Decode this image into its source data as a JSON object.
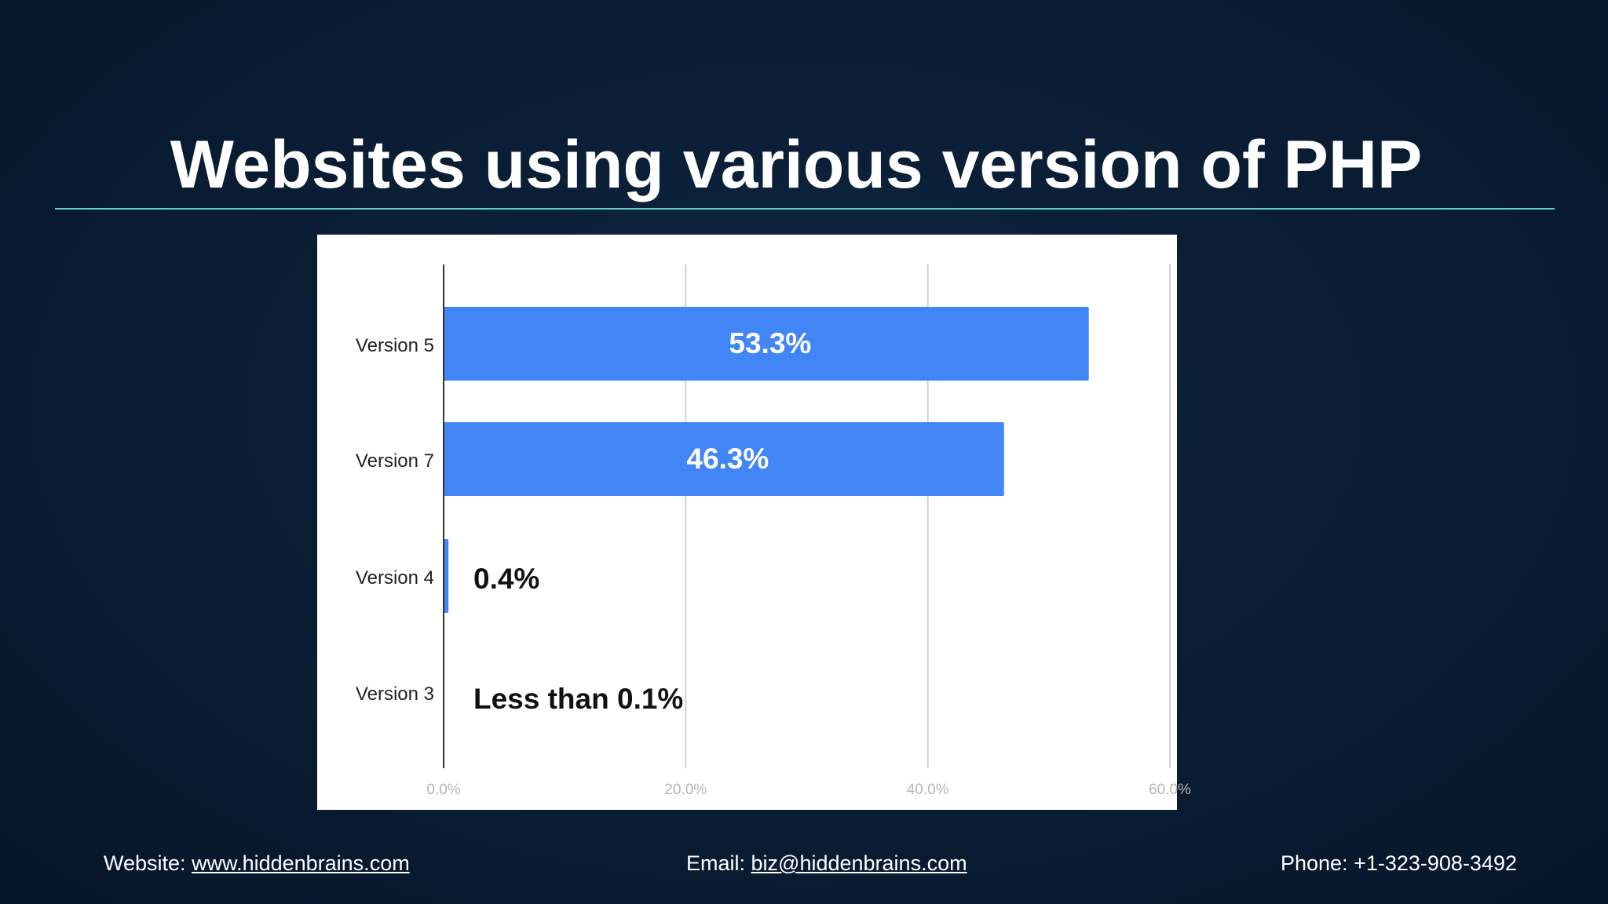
{
  "title": "Websites using various version of PHP",
  "footer": {
    "website_label": "Website:",
    "website_link": "www.hiddenbrains.com",
    "email_label": "Email:",
    "email_link": "biz@hiddenbrains.com",
    "phone_label": "Phone:",
    "phone_value": "+1-323-908-3492"
  },
  "colors": {
    "accent_line": "#5fd3c8",
    "bar": "#4285f4",
    "background": "#0a1e35"
  },
  "chart_data": {
    "type": "bar",
    "orientation": "horizontal",
    "title": "",
    "xlabel": "",
    "ylabel": "",
    "categories": [
      "Version 5",
      "Version 7",
      "Version 4",
      "Version 3"
    ],
    "values": [
      53.3,
      46.3,
      0.4,
      0.05
    ],
    "data_labels": [
      "53.3%",
      "46.3%",
      "0.4%",
      "Less than 0.1%"
    ],
    "xlim": [
      0,
      60
    ],
    "x_ticks": [
      0,
      20,
      40,
      60
    ],
    "x_tick_labels": [
      "0.0%",
      "20.0%",
      "40.0%",
      "60.0%"
    ],
    "grid": true,
    "legend": "none"
  }
}
